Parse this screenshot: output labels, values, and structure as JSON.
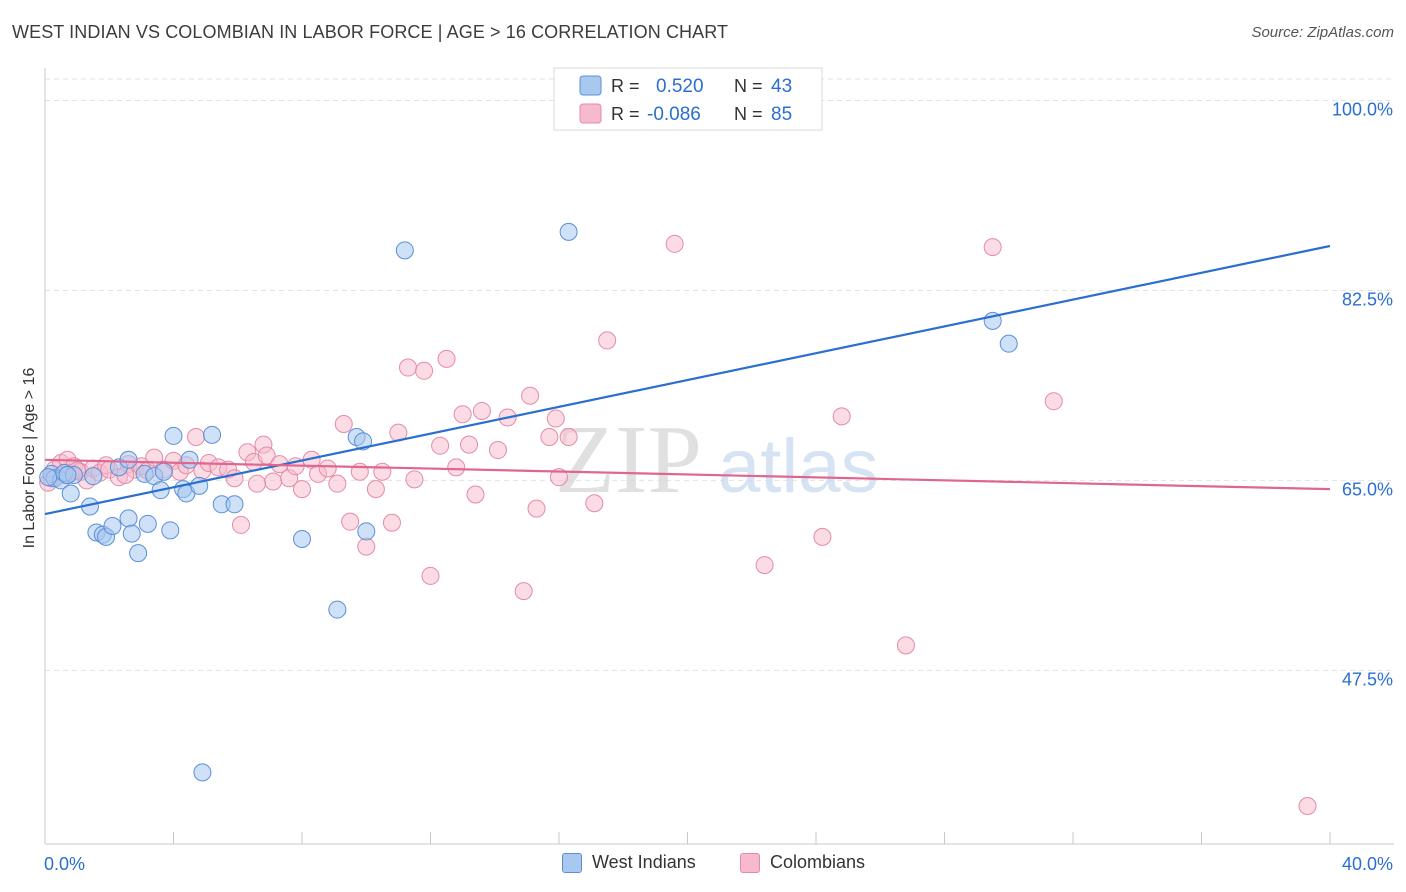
{
  "title": "WEST INDIAN VS COLOMBIAN IN LABOR FORCE | AGE > 16 CORRELATION CHART",
  "source": "Source: ZipAtlas.com",
  "watermark": {
    "zip": "ZIP",
    "atlas": "atlas"
  },
  "legend_top": [
    {
      "r_label": "R =",
      "r_value": "0.520",
      "n_label": "N =",
      "n_value": "43"
    },
    {
      "r_label": "R =",
      "r_value": "-0.086",
      "n_label": "N =",
      "n_value": "85"
    }
  ],
  "legend_bottom": [
    "West Indians",
    "Colombians"
  ],
  "colors": {
    "blue_fill": "#a8c8f0",
    "blue_stroke": "#5a8fd8",
    "blue_line": "#2a6fd0",
    "pink_fill": "#f7b9cc",
    "pink_stroke": "#e58aa8",
    "pink_line": "#e0668f",
    "value_text": "#2a6fd0",
    "grid": "#e2e2e2"
  },
  "chart_data": {
    "type": "scatter",
    "title": "WEST INDIAN VS COLOMBIAN IN LABOR FORCE | AGE > 16 CORRELATION CHART",
    "xlabel": "",
    "ylabel": "In Labor Force | Age > 16",
    "xlim": [
      0,
      40
    ],
    "ylim": [
      31.5,
      103
    ],
    "x_tick_labels": [
      {
        "value": 0,
        "label": "0.0%"
      },
      {
        "value": 40,
        "label": "40.0%"
      }
    ],
    "y_tick_labels": [
      {
        "value": 100,
        "label": "100.0%"
      },
      {
        "value": 82.5,
        "label": "82.5%"
      },
      {
        "value": 65,
        "label": "65.0%"
      },
      {
        "value": 47.5,
        "label": "47.5%"
      }
    ],
    "series": [
      {
        "name": "West Indians",
        "R": 0.52,
        "N": 43,
        "trend": {
          "x": [
            0,
            40
          ],
          "y": [
            61.9,
            86.6
          ]
        },
        "points": [
          [
            0.2,
            65.6
          ],
          [
            0.3,
            65.2
          ],
          [
            0.5,
            65.0
          ],
          [
            0.6,
            65.7
          ],
          [
            0.8,
            63.8
          ],
          [
            0.9,
            65.5
          ],
          [
            1.4,
            62.6
          ],
          [
            1.5,
            65.4
          ],
          [
            1.6,
            60.2
          ],
          [
            1.8,
            60.0
          ],
          [
            1.9,
            59.8
          ],
          [
            2.1,
            60.8
          ],
          [
            2.3,
            66.2
          ],
          [
            2.6,
            66.9
          ],
          [
            2.6,
            61.5
          ],
          [
            2.7,
            60.1
          ],
          [
            2.9,
            58.3
          ],
          [
            3.1,
            65.6
          ],
          [
            3.2,
            61.0
          ],
          [
            3.4,
            65.4
          ],
          [
            3.6,
            64.1
          ],
          [
            3.9,
            60.4
          ],
          [
            4.0,
            69.1
          ],
          [
            4.3,
            64.2
          ],
          [
            4.4,
            63.8
          ],
          [
            4.5,
            66.9
          ],
          [
            4.8,
            64.5
          ],
          [
            4.9,
            38.1
          ],
          [
            5.2,
            69.2
          ],
          [
            5.5,
            62.8
          ],
          [
            5.9,
            62.8
          ],
          [
            8.0,
            59.6
          ],
          [
            9.1,
            53.1
          ],
          [
            9.7,
            69.0
          ],
          [
            9.9,
            68.6
          ],
          [
            10.0,
            60.3
          ],
          [
            11.2,
            86.2
          ],
          [
            16.3,
            87.9
          ],
          [
            29.5,
            79.7
          ],
          [
            30.0,
            77.6
          ],
          [
            0.1,
            65.3
          ],
          [
            0.7,
            65.5
          ],
          [
            3.7,
            65.8
          ]
        ]
      },
      {
        "name": "Colombians",
        "R": -0.086,
        "N": 85,
        "trend": {
          "x": [
            0,
            40
          ],
          "y": [
            66.9,
            64.2
          ]
        },
        "points": [
          [
            0.1,
            64.8
          ],
          [
            0.3,
            66.0
          ],
          [
            0.5,
            66.6
          ],
          [
            0.7,
            66.9
          ],
          [
            0.8,
            65.7
          ],
          [
            0.9,
            66.3
          ],
          [
            1.1,
            65.8
          ],
          [
            1.3,
            65.0
          ],
          [
            1.5,
            66.1
          ],
          [
            1.7,
            65.7
          ],
          [
            1.9,
            66.4
          ],
          [
            2.0,
            66.0
          ],
          [
            2.3,
            65.3
          ],
          [
            2.6,
            66.5
          ],
          [
            2.8,
            66.0
          ],
          [
            3.0,
            66.3
          ],
          [
            3.2,
            65.9
          ],
          [
            3.4,
            67.1
          ],
          [
            3.7,
            66.0
          ],
          [
            4.0,
            66.8
          ],
          [
            4.2,
            65.8
          ],
          [
            4.4,
            66.4
          ],
          [
            4.7,
            69.0
          ],
          [
            4.9,
            65.9
          ],
          [
            5.1,
            66.6
          ],
          [
            5.4,
            66.2
          ],
          [
            5.7,
            66.0
          ],
          [
            5.9,
            65.2
          ],
          [
            6.1,
            60.9
          ],
          [
            6.3,
            67.6
          ],
          [
            6.5,
            66.7
          ],
          [
            6.8,
            68.3
          ],
          [
            6.9,
            67.3
          ],
          [
            7.1,
            64.9
          ],
          [
            7.3,
            66.5
          ],
          [
            7.6,
            65.2
          ],
          [
            7.8,
            66.3
          ],
          [
            8.0,
            64.2
          ],
          [
            8.3,
            66.9
          ],
          [
            8.5,
            65.6
          ],
          [
            8.8,
            66.1
          ],
          [
            9.1,
            64.7
          ],
          [
            9.3,
            70.2
          ],
          [
            9.5,
            61.2
          ],
          [
            9.8,
            65.8
          ],
          [
            10.0,
            58.9
          ],
          [
            10.3,
            64.2
          ],
          [
            10.5,
            65.8
          ],
          [
            10.8,
            61.1
          ],
          [
            11.0,
            69.4
          ],
          [
            11.3,
            75.4
          ],
          [
            11.5,
            65.1
          ],
          [
            11.8,
            75.1
          ],
          [
            12.0,
            56.2
          ],
          [
            12.3,
            68.2
          ],
          [
            12.5,
            76.2
          ],
          [
            12.8,
            66.2
          ],
          [
            13.0,
            71.1
          ],
          [
            13.2,
            68.3
          ],
          [
            13.4,
            63.7
          ],
          [
            13.6,
            71.4
          ],
          [
            14.1,
            67.8
          ],
          [
            14.4,
            70.8
          ],
          [
            14.9,
            54.8
          ],
          [
            15.1,
            72.8
          ],
          [
            15.3,
            62.4
          ],
          [
            15.7,
            69.0
          ],
          [
            15.9,
            70.7
          ],
          [
            16.0,
            65.3
          ],
          [
            16.3,
            69.0
          ],
          [
            17.1,
            62.9
          ],
          [
            17.5,
            77.9
          ],
          [
            19.6,
            86.8
          ],
          [
            22.4,
            57.2
          ],
          [
            24.2,
            59.8
          ],
          [
            24.8,
            70.9
          ],
          [
            26.8,
            49.8
          ],
          [
            29.5,
            86.5
          ],
          [
            31.4,
            72.3
          ],
          [
            39.3,
            35.0
          ],
          [
            0.2,
            65.2
          ],
          [
            0.6,
            65.5
          ],
          [
            1.0,
            65.9
          ],
          [
            2.5,
            65.5
          ],
          [
            6.6,
            64.7
          ]
        ]
      }
    ]
  }
}
